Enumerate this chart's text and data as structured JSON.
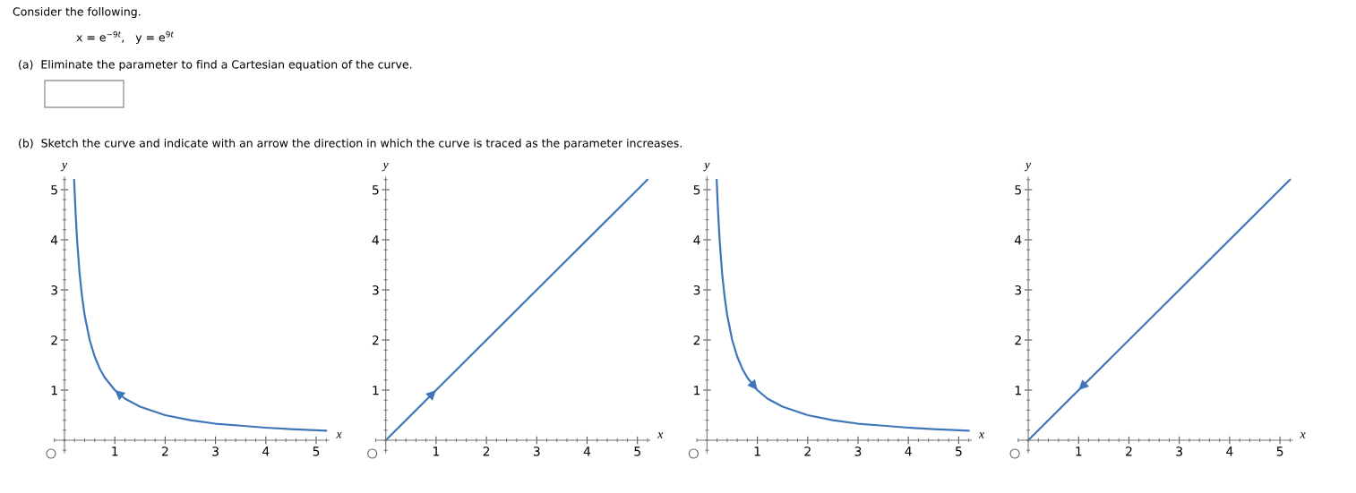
{
  "chart_data": [
    {
      "type": "other",
      "title": "Consider the following.",
      "annotations": [
        "x = e$^{−9t}$,   y = e$^{9t}$",
        "(a)  Eliminate the parameter to find a Cartesian equation of the curve.",
        "(b)  Sketch the curve and indicate with an arrow the direction in which the curve is traced as the parameter increases."
      ]
    },
    {
      "type": "line",
      "xlabel": "x",
      "ylabel": "y",
      "xlim": [
        -0.2,
        5.25
      ],
      "ylim": [
        -0.25,
        5.25
      ],
      "xticks": [
        1,
        2,
        3,
        4,
        5
      ],
      "yticks": [
        1,
        2,
        3,
        4,
        5
      ],
      "grid": false,
      "legend": false,
      "series": [
        {
          "color": "#3f76b9",
          "x": [
            5.2,
            5,
            4.5,
            4,
            3.5,
            3,
            2.5,
            2,
            1.5,
            1.2,
            1,
            0.8,
            0.7,
            0.6,
            0.5,
            0.4,
            0.35,
            0.3,
            0.25,
            0.22,
            0.2,
            0.192
          ],
          "values": [
            0.19,
            0.2,
            0.22,
            0.25,
            0.29,
            0.33,
            0.4,
            0.5,
            0.67,
            0.83,
            1,
            1.25,
            1.43,
            1.67,
            2,
            2.5,
            2.86,
            3.33,
            4,
            4.55,
            5,
            5.2
          ]
        }
      ]
    },
    {
      "type": "line",
      "xlabel": "x",
      "ylabel": "y",
      "xlim": [
        -0.2,
        5.25
      ],
      "ylim": [
        -0.25,
        5.25
      ],
      "xticks": [
        1,
        2,
        3,
        4,
        5
      ],
      "yticks": [
        1,
        2,
        3,
        4,
        5
      ],
      "grid": false,
      "legend": false,
      "series": [
        {
          "color": "#3f76b9",
          "x": [
            0,
            0.8,
            1,
            5.2
          ],
          "values": [
            0,
            0.8,
            1,
            5.2
          ]
        }
      ]
    },
    {
      "type": "line",
      "xlabel": "x",
      "ylabel": "y",
      "xlim": [
        -0.2,
        5.25
      ],
      "ylim": [
        -0.25,
        5.25
      ],
      "xticks": [
        1,
        2,
        3,
        4,
        5
      ],
      "yticks": [
        1,
        2,
        3,
        4,
        5
      ],
      "grid": false,
      "legend": false,
      "series": [
        {
          "color": "#3f76b9",
          "x": [
            0.192,
            0.2,
            0.22,
            0.25,
            0.3,
            0.35,
            0.4,
            0.5,
            0.6,
            0.7,
            0.8,
            1,
            1.2,
            1.5,
            2,
            2.5,
            3,
            3.5,
            4,
            4.5,
            5,
            5.2
          ],
          "values": [
            5.2,
            5,
            4.55,
            4,
            3.33,
            2.86,
            2.5,
            2,
            1.67,
            1.43,
            1.25,
            1,
            0.83,
            0.67,
            0.5,
            0.4,
            0.33,
            0.29,
            0.25,
            0.22,
            0.2,
            0.19
          ]
        }
      ]
    },
    {
      "type": "line",
      "xlabel": "x",
      "ylabel": "y",
      "xlim": [
        -0.2,
        5.25
      ],
      "ylim": [
        -0.25,
        5.25
      ],
      "xticks": [
        1,
        2,
        3,
        4,
        5
      ],
      "yticks": [
        1,
        2,
        3,
        4,
        5
      ],
      "grid": false,
      "legend": false,
      "series": [
        {
          "color": "#3f76b9",
          "x": [
            5.2,
            1.2,
            1,
            0
          ],
          "values": [
            5.2,
            1.2,
            1,
            0
          ]
        }
      ]
    }
  ]
}
